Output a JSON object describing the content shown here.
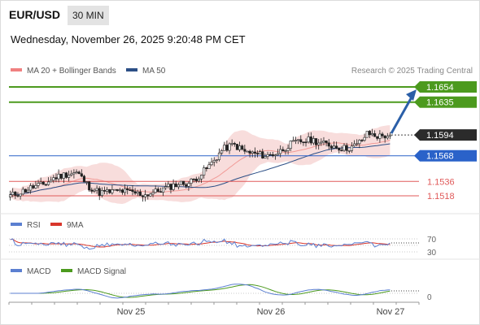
{
  "header": {
    "pair": "EUR/USD",
    "timeframe": "30 MIN",
    "datetime": "Wednesday, November 26, 2025 9:20:48 PM CET"
  },
  "legend": {
    "ma20": "MA 20 + Bollinger Bands",
    "ma50": "MA 50",
    "copyright": "Research © 2025 Trading Central"
  },
  "rsi": {
    "label": "RSI",
    "ma_label": "9MA",
    "ticks": [
      "70",
      "30"
    ],
    "value": "57.41"
  },
  "macd": {
    "label": "MACD",
    "signal_label": "MACD Signal",
    "ticks": [
      "0"
    ],
    "value": "0.00"
  },
  "colors": {
    "green_levels": "#4c9a1e",
    "current_price_box": "#2b2b2b",
    "blue_level": "#2a62c9",
    "red_levels": "#e05a5a",
    "bull_candle": "#ffffff",
    "bear_candle": "#222222",
    "ma20_band": "#f6d2d0",
    "ma50": "#2c4f86",
    "rsi": "#5b7fd1",
    "rsi_ma": "#d9362b",
    "macd": "#5b7fd1",
    "macd_signal": "#4c9a1e",
    "arrow": "#2b5fa8"
  },
  "chart_data": [
    {
      "type": "candlestick",
      "title": "EUR/USD 30 MIN",
      "x_ticks": [
        "Nov 25",
        "Nov 26",
        "Nov 27"
      ],
      "series": [
        {
          "name": "MA 20 + Bollinger Bands"
        },
        {
          "name": "MA 50"
        }
      ],
      "current_price": "1.1594",
      "levels": [
        {
          "value": "1.1654",
          "style": "green-box"
        },
        {
          "value": "1.1635",
          "style": "green-box"
        },
        {
          "value": "1.1594",
          "style": "dark-box"
        },
        {
          "value": "1.1568",
          "style": "blue-box"
        },
        {
          "value": "1.1536",
          "style": "red-text"
        },
        {
          "value": "1.1518",
          "style": "red-text"
        }
      ],
      "close_path": [
        1.1518,
        1.1523,
        1.1529,
        1.1532,
        1.1541,
        1.1545,
        1.1547,
        1.153,
        1.1522,
        1.1523,
        1.1524,
        1.1522,
        1.1519,
        1.1523,
        1.1528,
        1.1533,
        1.1534,
        1.1544,
        1.1558,
        1.1576,
        1.1582,
        1.1573,
        1.157,
        1.1568,
        1.1572,
        1.1582,
        1.1586,
        1.1588,
        1.1583,
        1.158,
        1.1577,
        1.1581,
        1.1596,
        1.1592,
        1.1594
      ]
    },
    {
      "type": "line",
      "title": "RSI",
      "series": [
        {
          "name": "RSI"
        },
        {
          "name": "9MA"
        }
      ],
      "y_ticks": [
        70,
        30
      ],
      "current_value": 57.41
    },
    {
      "type": "line",
      "title": "MACD",
      "series": [
        {
          "name": "MACD"
        },
        {
          "name": "MACD Signal"
        }
      ],
      "y_ticks": [
        0
      ],
      "current_value": 0.0
    }
  ]
}
